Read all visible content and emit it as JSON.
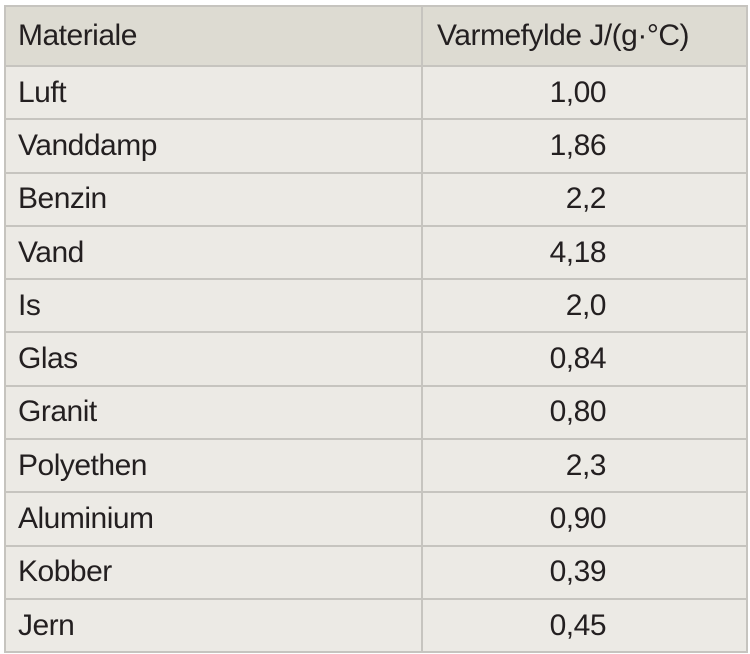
{
  "table": {
    "headers": {
      "material": "Materiale",
      "heat_capacity": "Varmefylde  J/(g·°C)"
    },
    "rows": [
      {
        "material": "Luft",
        "value": "1,00"
      },
      {
        "material": "Vanddamp",
        "value": "1,86"
      },
      {
        "material": "Benzin",
        "value": "2,2"
      },
      {
        "material": "Vand",
        "value": "4,18"
      },
      {
        "material": "Is",
        "value": "2,0"
      },
      {
        "material": "Glas",
        "value": "0,84"
      },
      {
        "material": "Granit",
        "value": "0,80"
      },
      {
        "material": "Polyethen",
        "value": "2,3"
      },
      {
        "material": "Aluminium",
        "value": "0,90"
      },
      {
        "material": "Kobber",
        "value": "0,39"
      },
      {
        "material": "Jern",
        "value": "0,45"
      }
    ]
  },
  "colors": {
    "header_bg": "#dddbd2",
    "cell_bg": "#eceae5",
    "border": "#c6c4bf",
    "text": "#231f20"
  }
}
